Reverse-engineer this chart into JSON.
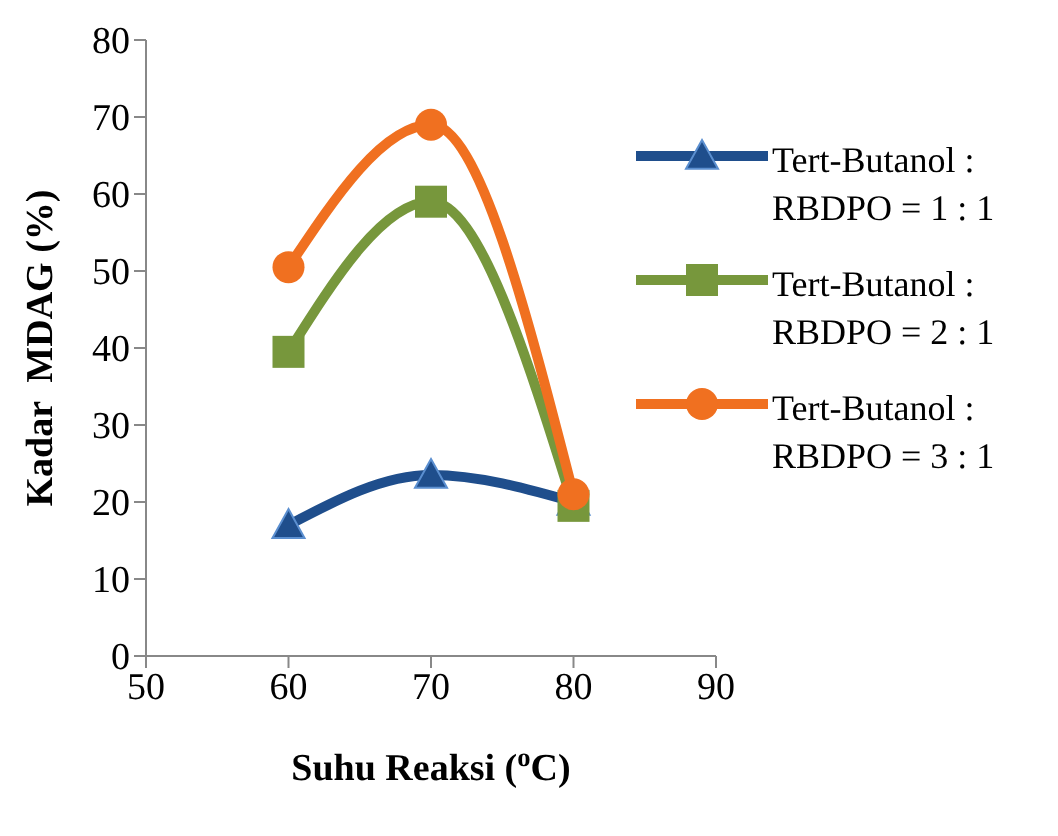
{
  "chart_data": {
    "type": "line",
    "xlabel": "Suhu Reaksi ($^{o}$C)",
    "ylabel": "Kadar  MDAG (%)",
    "x": [
      60,
      70,
      80
    ],
    "xlim": [
      50,
      90
    ],
    "xticks": [
      50,
      60,
      70,
      80,
      90
    ],
    "ylim": [
      0,
      80
    ],
    "yticks": [
      0,
      10,
      20,
      30,
      40,
      50,
      60,
      70,
      80
    ],
    "legend": "right",
    "series": [
      {
        "name": "Tert-Butanol : RBDPO = 1 : 1",
        "color": "#1f4e8c",
        "marker": "triangle",
        "values": [
          17,
          23.5,
          20
        ]
      },
      {
        "name": "Tert-Butanol : RBDPO = 2 : 1",
        "color": "#77973c",
        "marker": "square",
        "values": [
          39.5,
          59,
          19.5
        ]
      },
      {
        "name": "Tert-Butanol : RBDPO = 3 : 1",
        "color": "#f07020",
        "marker": "circle",
        "values": [
          50.5,
          69,
          21
        ]
      }
    ]
  }
}
